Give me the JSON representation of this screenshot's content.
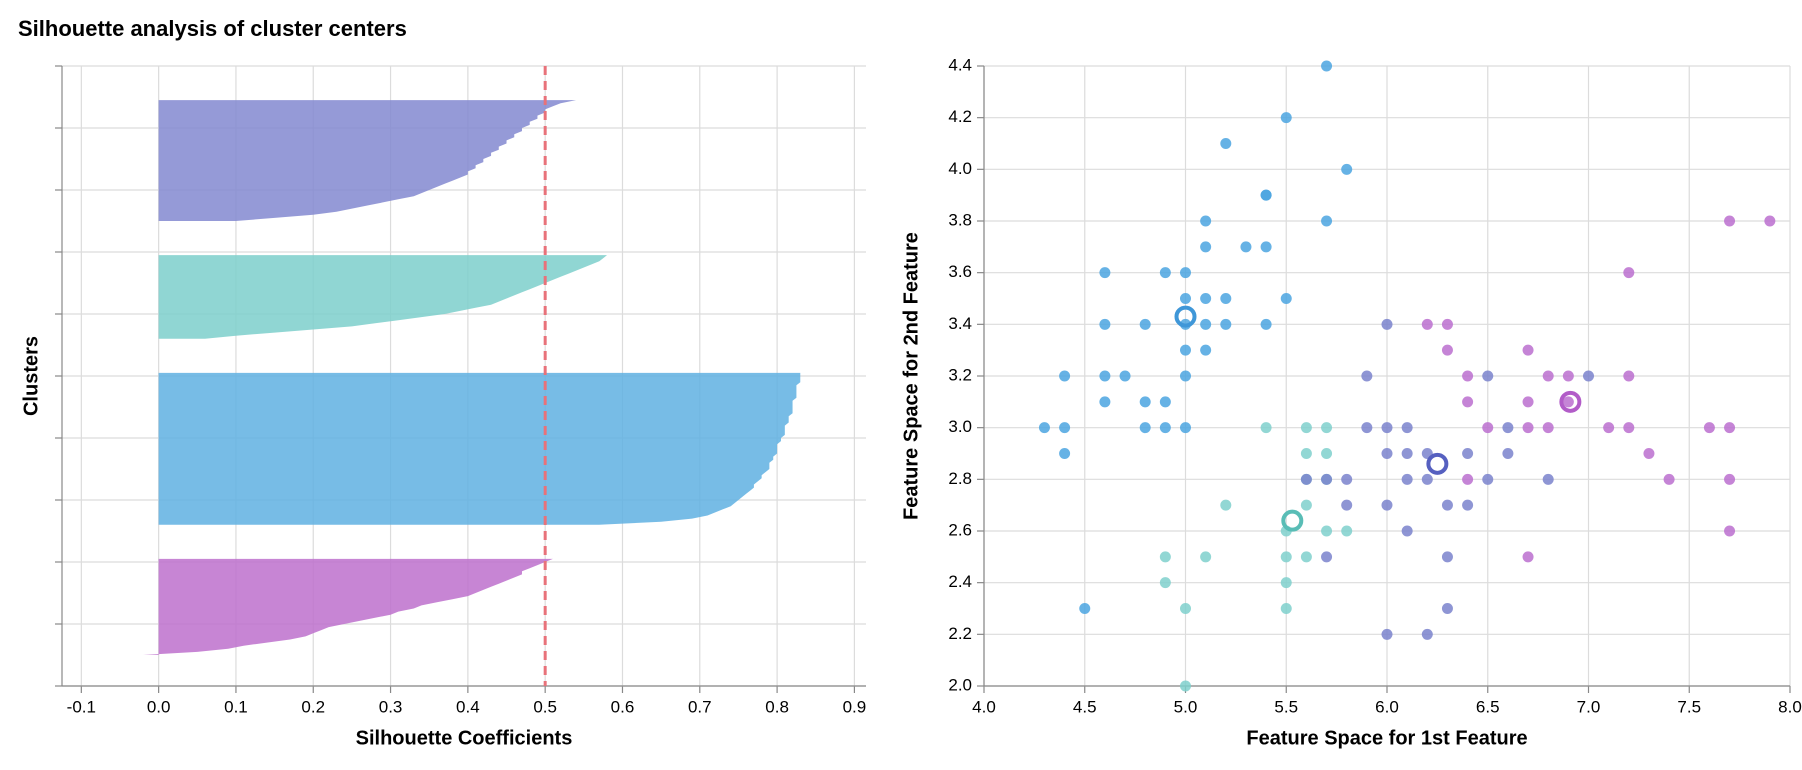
{
  "title": "Silhouette analysis of cluster centers",
  "chart_data": [
    {
      "type": "silhouette",
      "xlabel": "Silhouette Coefficients",
      "ylabel": "Clusters",
      "xlim": [
        -0.125,
        0.915
      ],
      "xticks": [
        -0.1,
        {
          "value": 0,
          "label": "0.0"
        },
        0.1,
        0.2,
        0.3,
        0.4,
        0.5,
        0.6,
        0.7,
        0.8,
        0.9
      ],
      "ylim": [
        0,
        200
      ],
      "yticks": [
        0,
        20,
        40,
        60,
        80,
        100,
        120,
        140,
        160,
        180,
        200
      ],
      "grid": true,
      "average": 0.5,
      "average_color": "#e8727a",
      "series": [
        {
          "color": "#bd70cc",
          "values": [
            -0.02,
            0.05,
            0.09,
            0.11,
            0.14,
            0.17,
            0.19,
            0.2,
            0.21,
            0.22,
            0.24,
            0.26,
            0.28,
            0.3,
            0.31,
            0.33,
            0.34,
            0.36,
            0.38,
            0.4,
            0.41,
            0.42,
            0.43,
            0.44,
            0.45,
            0.46,
            0.47,
            0.47,
            0.48,
            0.49,
            0.5,
            0.51
          ]
        },
        {
          "color": "#5fb0e2",
          "values": [
            0.57,
            0.65,
            0.69,
            0.71,
            0.72,
            0.73,
            0.74,
            0.745,
            0.75,
            0.755,
            0.76,
            0.765,
            0.77,
            0.77,
            0.775,
            0.78,
            0.78,
            0.785,
            0.79,
            0.79,
            0.79,
            0.795,
            0.795,
            0.8,
            0.8,
            0.8,
            0.8,
            0.805,
            0.805,
            0.81,
            0.81,
            0.81,
            0.81,
            0.815,
            0.815,
            0.815,
            0.82,
            0.82,
            0.82,
            0.82,
            0.82,
            0.825,
            0.825,
            0.825,
            0.825,
            0.825,
            0.83,
            0.83,
            0.83,
            0.83
          ]
        },
        {
          "color": "#7ccfcb",
          "values": [
            0.06,
            0.1,
            0.15,
            0.2,
            0.25,
            0.28,
            0.31,
            0.34,
            0.37,
            0.39,
            0.41,
            0.43,
            0.44,
            0.45,
            0.46,
            0.47,
            0.48,
            0.49,
            0.5,
            0.51,
            0.52,
            0.53,
            0.54,
            0.55,
            0.56,
            0.57,
            0.575,
            0.58
          ]
        },
        {
          "color": "#8288d0",
          "values": [
            0.1,
            0.15,
            0.2,
            0.23,
            0.25,
            0.27,
            0.29,
            0.31,
            0.33,
            0.34,
            0.35,
            0.36,
            0.37,
            0.38,
            0.39,
            0.4,
            0.4,
            0.41,
            0.41,
            0.42,
            0.42,
            0.43,
            0.43,
            0.44,
            0.44,
            0.45,
            0.45,
            0.46,
            0.46,
            0.47,
            0.47,
            0.48,
            0.48,
            0.49,
            0.49,
            0.5,
            0.5,
            0.51,
            0.52,
            0.54
          ]
        }
      ]
    },
    {
      "type": "scatter",
      "xlabel": "Feature Space for 1st Feature",
      "ylabel": "Feature Space for 2nd Feature",
      "xlim": [
        4,
        8
      ],
      "xticks": [
        {
          "value": 4,
          "label": "4.0"
        },
        4.5,
        {
          "value": 5,
          "label": "5.0"
        },
        5.5,
        {
          "value": 6,
          "label": "6.0"
        },
        6.5,
        {
          "value": 7,
          "label": "7.0"
        },
        7.5,
        {
          "value": 8,
          "label": "8.0"
        }
      ],
      "ylim": [
        2,
        4.4
      ],
      "yticks": [
        {
          "value": 2,
          "label": "2.0"
        },
        2.2,
        2.4,
        2.6,
        2.8,
        {
          "value": 3,
          "label": "3.0"
        },
        3.2,
        3.4,
        3.6,
        3.8,
        {
          "value": 4,
          "label": "4.0"
        },
        4.2,
        4.4
      ],
      "grid": true,
      "series": [
        {
          "color": "#4ba4e0",
          "x": [
            5.7,
            5.5,
            5.2,
            5.8,
            5.4,
            5.4,
            5.1,
            5.7,
            5.1,
            5.3,
            5.4,
            4.6,
            4.9,
            5.0,
            5.1,
            5.0,
            5.2,
            5.5,
            4.6,
            4.8,
            5.0,
            5.1,
            5.2,
            5.4,
            5.0,
            5.1,
            4.4,
            4.6,
            4.7,
            5.0,
            4.6,
            4.8,
            4.9,
            4.3,
            4.4,
            4.8,
            4.9,
            5.0,
            4.4,
            4.5
          ],
          "y": [
            4.4,
            4.2,
            4.1,
            4.0,
            3.9,
            3.9,
            3.8,
            3.8,
            3.7,
            3.7,
            3.7,
            3.6,
            3.6,
            3.6,
            3.5,
            3.5,
            3.5,
            3.5,
            3.4,
            3.4,
            3.4,
            3.4,
            3.4,
            3.4,
            3.3,
            3.3,
            3.2,
            3.2,
            3.2,
            3.2,
            3.1,
            3.1,
            3.1,
            3.0,
            3.0,
            3.0,
            3.0,
            3.0,
            2.9,
            2.3
          ]
        },
        {
          "color": "#7fd0cc",
          "x": [
            5.4,
            5.6,
            5.7,
            5.6,
            5.7,
            5.6,
            5.7,
            5.2,
            5.6,
            5.5,
            5.7,
            5.8,
            4.9,
            5.1,
            5.5,
            5.6,
            4.9,
            5.5,
            5.0,
            5.5,
            5.0
          ],
          "y": [
            3.0,
            3.0,
            3.0,
            2.9,
            2.9,
            2.8,
            2.8,
            2.7,
            2.7,
            2.6,
            2.6,
            2.6,
            2.5,
            2.5,
            2.5,
            2.5,
            2.4,
            2.4,
            2.3,
            2.3,
            2.0
          ]
        },
        {
          "color": "#7a82cc",
          "x": [
            6.0,
            5.9,
            7.0,
            6.5,
            5.9,
            6.0,
            6.1,
            6.6,
            6.1,
            6.2,
            6.4,
            6.0,
            6.6,
            5.6,
            5.7,
            5.8,
            6.1,
            6.2,
            6.5,
            6.8,
            5.8,
            6.0,
            6.3,
            6.4,
            6.1,
            5.7,
            6.3,
            6.3,
            6.0,
            6.2
          ],
          "y": [
            3.4,
            3.2,
            3.2,
            3.2,
            3.0,
            3.0,
            3.0,
            3.0,
            2.9,
            2.9,
            2.9,
            2.9,
            2.9,
            2.8,
            2.8,
            2.8,
            2.8,
            2.8,
            2.8,
            2.8,
            2.7,
            2.7,
            2.7,
            2.7,
            2.6,
            2.5,
            2.5,
            2.3,
            2.2,
            2.2
          ]
        },
        {
          "color": "#bb6fcf",
          "x": [
            7.9,
            7.7,
            7.2,
            6.3,
            6.2,
            6.3,
            6.7,
            6.4,
            6.8,
            6.9,
            7.2,
            6.7,
            6.9,
            6.4,
            6.5,
            6.7,
            6.8,
            7.1,
            7.2,
            7.6,
            7.7,
            7.3,
            6.4,
            7.4,
            7.7,
            7.7,
            6.7
          ],
          "y": [
            3.8,
            3.8,
            3.6,
            3.4,
            3.4,
            3.3,
            3.3,
            3.2,
            3.2,
            3.2,
            3.2,
            3.1,
            3.1,
            3.1,
            3.0,
            3.0,
            3.0,
            3.0,
            3.0,
            3.0,
            3.0,
            2.9,
            2.8,
            2.8,
            2.8,
            2.6,
            2.5
          ]
        },
        {
          "marker": "ring",
          "colors": [
            "#3f97d8",
            "#59bdb6",
            "#5660c0",
            "#b25cc8"
          ],
          "x": [
            5.0,
            5.53,
            6.25,
            6.91
          ],
          "y": [
            3.43,
            2.64,
            2.86,
            3.1
          ]
        }
      ]
    }
  ]
}
